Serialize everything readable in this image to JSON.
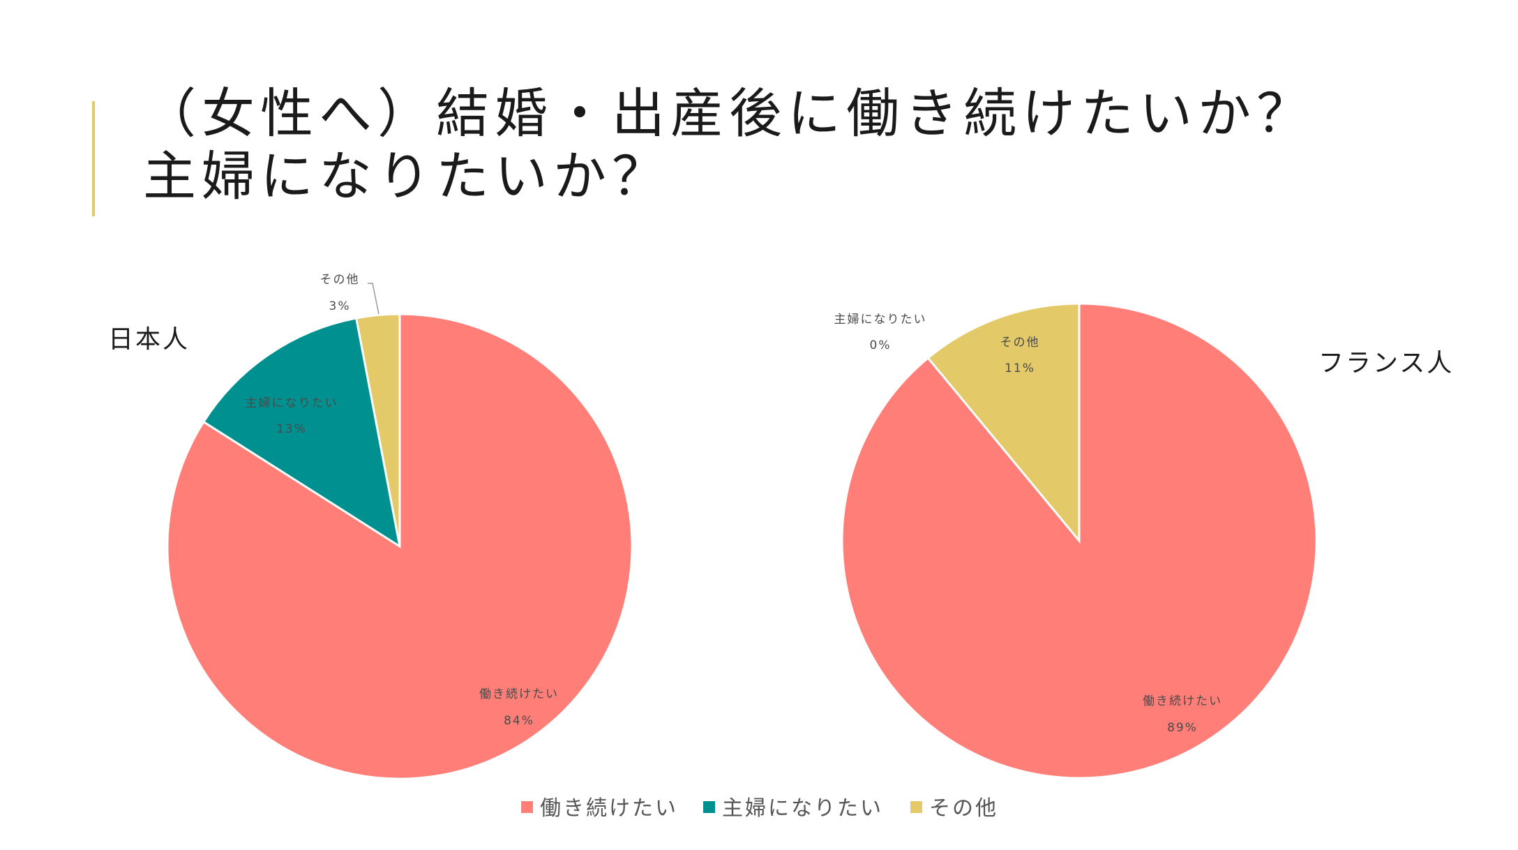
{
  "title": {
    "line1": "（女性へ）結婚・出産後に働き続けたいか？",
    "line2": "主婦になりたいか？"
  },
  "colors": {
    "work": "#ff7f78",
    "housewife": "#009090",
    "other": "#e3c967",
    "accent": "#e2c866"
  },
  "chart_data": [
    {
      "type": "pie",
      "title": "日本人",
      "categories": [
        "働き続けたい",
        "主婦になりたい",
        "その他"
      ],
      "values": [
        84,
        13,
        3
      ],
      "labels": [
        "84%",
        "13%",
        "3%"
      ],
      "legend_position": "bottom"
    },
    {
      "type": "pie",
      "title": "フランス人",
      "categories": [
        "働き続けたい",
        "主婦になりたい",
        "その他"
      ],
      "values": [
        89,
        0,
        11
      ],
      "labels": [
        "89%",
        "0%",
        "11%"
      ],
      "legend_position": "bottom"
    }
  ],
  "legend": [
    {
      "label": "働き続けたい",
      "color": "#ff7f78"
    },
    {
      "label": "主婦になりたい",
      "color": "#009090"
    },
    {
      "label": "その他",
      "color": "#e3c967"
    }
  ]
}
